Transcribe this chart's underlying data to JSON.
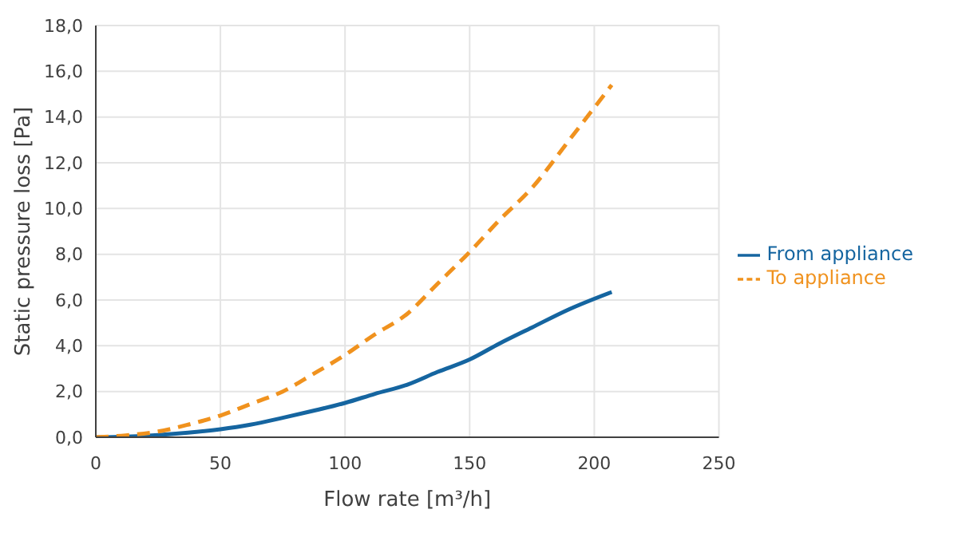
{
  "chart_data": {
    "type": "line",
    "xlabel": "Flow rate [m³/h]",
    "ylabel": "Static pressure loss [Pa]",
    "x": [
      0,
      12,
      25,
      37,
      50,
      62,
      75,
      87,
      100,
      112,
      125,
      137,
      150,
      162,
      175,
      190,
      207
    ],
    "series": [
      {
        "name": "From appliance",
        "color": "#1565a0",
        "line_style": "solid",
        "values": [
          0,
          0.03,
          0.1,
          0.2,
          0.35,
          0.55,
          0.85,
          1.15,
          1.5,
          1.9,
          2.3,
          2.85,
          3.4,
          4.1,
          4.8,
          5.6,
          6.35
        ]
      },
      {
        "name": "To appliance",
        "color": "#f0921e",
        "line_style": "dashed",
        "values": [
          0,
          0.08,
          0.25,
          0.55,
          0.95,
          1.45,
          2.0,
          2.75,
          3.6,
          4.5,
          5.4,
          6.7,
          8.1,
          9.5,
          10.9,
          13.0,
          15.4
        ]
      }
    ],
    "xlim": [
      0,
      250
    ],
    "xticks": [
      0,
      50,
      100,
      150,
      200,
      250
    ],
    "ylim": [
      0,
      18
    ],
    "yticks": [
      {
        "value": 0,
        "label": "0,0"
      },
      {
        "value": 2,
        "label": "2,0"
      },
      {
        "value": 4,
        "label": "4,0"
      },
      {
        "value": 6,
        "label": "6,0"
      },
      {
        "value": 8,
        "label": "8,0"
      },
      {
        "value": 10,
        "label": "10,0"
      },
      {
        "value": 12,
        "label": "12,0"
      },
      {
        "value": 14,
        "label": "14,0"
      },
      {
        "value": 16,
        "label": "16,0"
      },
      {
        "value": 18,
        "label": "18,0"
      }
    ],
    "grid": true,
    "legend": "right",
    "marker": "none"
  }
}
